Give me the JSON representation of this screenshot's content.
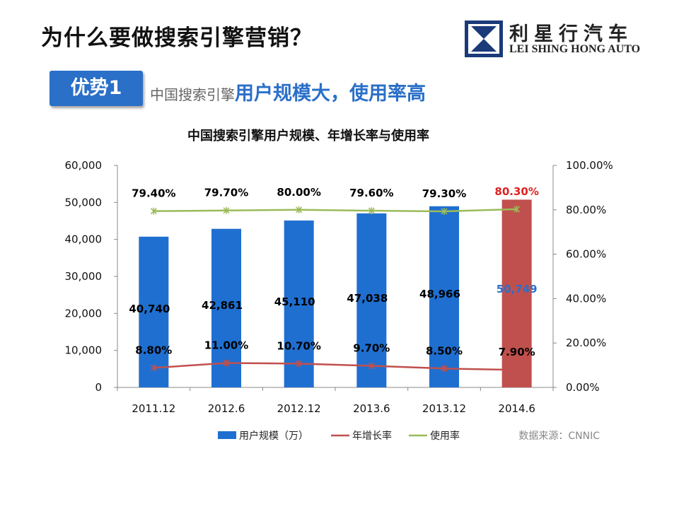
{
  "slide": {
    "title": "为什么要做搜索引擎营销？",
    "badge": "优势1",
    "subtitle_prefix": "中国搜索引擎",
    "subtitle_main": "用户规模大，使用率高"
  },
  "logo": {
    "cn": "利星行汽车",
    "en": "LEI SHING HONG AUTO"
  },
  "source": "数据来源：CNNIC",
  "chart_data": {
    "type": "bar",
    "title": "中国搜索引擎用户规模、年增长率与使用率",
    "categories": [
      "2011.12",
      "2012.6",
      "2012.12",
      "2013.6",
      "2013.12",
      "2014.6"
    ],
    "y_left": {
      "ticks": [
        "0",
        "10,000",
        "20,000",
        "30,000",
        "40,000",
        "50,000",
        "60,000"
      ],
      "ylim": [
        0,
        60000
      ]
    },
    "y_right": {
      "ticks": [
        "0.00%",
        "20.00%",
        "40.00%",
        "60.00%",
        "80.00%",
        "100.00%"
      ],
      "ylim": [
        0,
        100
      ]
    },
    "series": [
      {
        "name": "用户规模（万）",
        "kind": "bar",
        "axis": "left",
        "values": [
          40740,
          42861,
          45110,
          47038,
          48966,
          50749
        ],
        "labels": [
          "40,740",
          "42,861",
          "45,110",
          "47,038",
          "48,966",
          "50,749"
        ],
        "color": "#1f6fd0",
        "highlight_color": "#c0504d"
      },
      {
        "name": "年增长率",
        "kind": "line",
        "axis": "right",
        "values": [
          8.8,
          11.0,
          10.7,
          9.7,
          8.5,
          7.9
        ],
        "labels": [
          "8.80%",
          "11.00%",
          "10.70%",
          "9.70%",
          "8.50%",
          "7.90%"
        ],
        "color": "#c0504d"
      },
      {
        "name": "使用率",
        "kind": "line",
        "axis": "right",
        "values": [
          79.4,
          79.7,
          80.0,
          79.6,
          79.3,
          80.3
        ],
        "labels": [
          "79.40%",
          "79.70%",
          "80.00%",
          "79.60%",
          "79.30%",
          "80.30%"
        ],
        "color": "#9bbb59"
      }
    ],
    "label_colors": {
      "normal": "#000000",
      "highlight_bar": "#2a6fc8",
      "highlight_rate": "#e02020"
    },
    "grid": false,
    "legend": "bottom"
  }
}
